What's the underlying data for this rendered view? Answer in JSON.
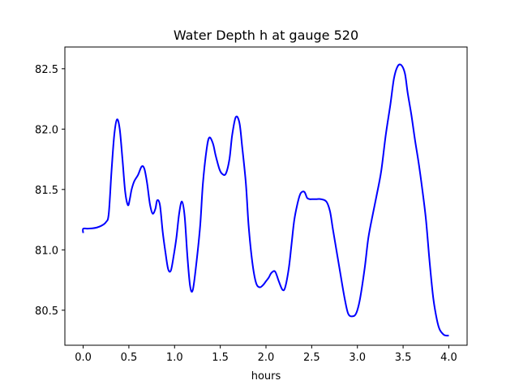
{
  "chart_data": {
    "type": "line",
    "title": "Water Depth h at gauge 520",
    "xlabel": "hours",
    "ylabel": "",
    "xlim": [
      -0.2,
      4.2
    ],
    "ylim": [
      80.21,
      82.68
    ],
    "grid": false,
    "xticks": [
      0.0,
      0.5,
      1.0,
      1.5,
      2.0,
      2.5,
      3.0,
      3.5,
      4.0
    ],
    "xtick_labels": [
      "0.0",
      "0.5",
      "1.0",
      "1.5",
      "2.0",
      "2.5",
      "3.0",
      "3.5",
      "4.0"
    ],
    "yticks": [
      80.5,
      81.0,
      81.5,
      82.0,
      82.5
    ],
    "ytick_labels": [
      "80.5",
      "81.0",
      "81.5",
      "82.0",
      "82.5"
    ],
    "series": [
      {
        "color": "#0000ff",
        "x": [
          0.0,
          0.0,
          0.05,
          0.1,
          0.15,
          0.2,
          0.25,
          0.28,
          0.31,
          0.34,
          0.37,
          0.4,
          0.43,
          0.46,
          0.49,
          0.51,
          0.53,
          0.56,
          0.6,
          0.64,
          0.67,
          0.7,
          0.73,
          0.76,
          0.79,
          0.81,
          0.84,
          0.87,
          0.9,
          0.93,
          0.96,
          0.99,
          1.02,
          1.05,
          1.08,
          1.11,
          1.14,
          1.17,
          1.2,
          1.24,
          1.28,
          1.31,
          1.35,
          1.38,
          1.42,
          1.45,
          1.49,
          1.52,
          1.56,
          1.6,
          1.63,
          1.67,
          1.71,
          1.74,
          1.78,
          1.81,
          1.85,
          1.89,
          1.93,
          1.97,
          2.0,
          2.03,
          2.06,
          2.1,
          2.14,
          2.18,
          2.21,
          2.25,
          2.28,
          2.31,
          2.35,
          2.38,
          2.42,
          2.45,
          2.48,
          2.51,
          2.55,
          2.6,
          2.66,
          2.7,
          2.73,
          2.77,
          2.81,
          2.86,
          2.9,
          2.95,
          2.99,
          3.03,
          3.08,
          3.12,
          3.17,
          3.21,
          3.26,
          3.31,
          3.36,
          3.4,
          3.44,
          3.48,
          3.52,
          3.55,
          3.59,
          3.63,
          3.67,
          3.71,
          3.75,
          3.79,
          3.83,
          3.87,
          3.9,
          3.94,
          3.97,
          4.0
        ],
        "y": [
          81.14,
          81.175,
          81.176,
          81.178,
          81.185,
          81.2,
          81.23,
          81.3,
          81.65,
          81.95,
          82.08,
          82.0,
          81.75,
          81.48,
          81.37,
          81.42,
          81.5,
          81.57,
          81.62,
          81.69,
          81.67,
          81.55,
          81.38,
          81.3,
          81.34,
          81.41,
          81.37,
          81.15,
          80.98,
          80.84,
          80.83,
          80.95,
          81.1,
          81.3,
          81.4,
          81.28,
          80.95,
          80.7,
          80.67,
          80.9,
          81.2,
          81.55,
          81.83,
          81.93,
          81.88,
          81.78,
          81.67,
          81.63,
          81.63,
          81.75,
          81.95,
          82.1,
          82.05,
          81.85,
          81.55,
          81.2,
          80.9,
          80.73,
          80.69,
          80.71,
          80.74,
          80.77,
          80.81,
          80.82,
          80.74,
          80.67,
          80.69,
          80.85,
          81.05,
          81.25,
          81.4,
          81.47,
          81.48,
          81.43,
          81.42,
          81.42,
          81.42,
          81.42,
          81.4,
          81.32,
          81.18,
          81.0,
          80.82,
          80.6,
          80.47,
          80.45,
          80.48,
          80.6,
          80.85,
          81.1,
          81.3,
          81.45,
          81.65,
          81.95,
          82.2,
          82.42,
          82.52,
          82.53,
          82.46,
          82.3,
          82.12,
          81.91,
          81.72,
          81.5,
          81.25,
          80.9,
          80.6,
          80.42,
          80.34,
          80.3,
          80.29,
          80.29
        ]
      }
    ]
  }
}
